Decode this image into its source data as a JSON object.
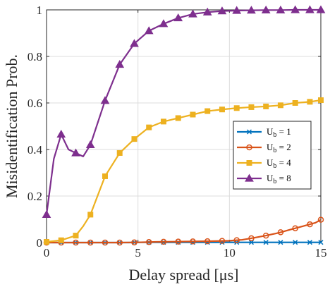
{
  "chart_data": {
    "type": "line",
    "xlabel": "Delay spread [μs]",
    "ylabel": "Misidentification Prob.",
    "xlim": [
      0,
      15
    ],
    "ylim": [
      0,
      1
    ],
    "xticks": [
      0,
      5,
      10,
      15
    ],
    "yticks": [
      0,
      0.2,
      0.4,
      0.6,
      0.8,
      1
    ],
    "xtick_labels": [
      "0",
      "5",
      "10",
      "15"
    ],
    "ytick_labels": [
      "0",
      "0.2",
      "0.4",
      "0.6",
      "0.8",
      "1"
    ],
    "grid": true,
    "legend_position": "center-right",
    "series": [
      {
        "name": "Ub = 1",
        "legend_main": "U",
        "legend_sub": "b",
        "legend_rest": " = 1",
        "color": "#0072BD",
        "marker": "x",
        "x": [
          0,
          0.5,
          1,
          1.5,
          2,
          2.5,
          3,
          3.5,
          4,
          4.5,
          5,
          5.5,
          6,
          6.5,
          7,
          7.5,
          8,
          8.5,
          9,
          9.5,
          10,
          10.5,
          11,
          11.5,
          12,
          12.5,
          13,
          13.5,
          14,
          14.5,
          15
        ],
        "y": [
          0,
          0,
          0,
          0,
          0,
          0,
          0,
          0,
          0,
          0,
          0.001,
          0.001,
          0.001,
          0.001,
          0.001,
          0.001,
          0.001,
          0.001,
          0.001,
          0.001,
          0.001,
          0.001,
          0.001,
          0.001,
          0.001,
          0.001,
          0.001,
          0.001,
          0.001,
          0.001,
          0.001
        ],
        "marker_x": [
          0,
          0.8,
          1.6,
          2.4,
          3.2,
          4,
          4.8,
          5.6,
          6.4,
          7.2,
          8,
          8.8,
          9.6,
          10.4,
          11.2,
          12,
          12.8,
          13.6,
          14.4,
          15
        ]
      },
      {
        "name": "Ub = 2",
        "legend_main": "U",
        "legend_sub": "b",
        "legend_rest": " = 2",
        "color": "#D95319",
        "marker": "circle",
        "x": [
          0,
          1,
          2,
          3,
          4,
          5,
          6,
          7,
          8,
          9,
          10,
          10.7,
          11.3,
          12,
          12.7,
          13.3,
          14,
          14.7,
          15
        ],
        "y": [
          0,
          0,
          0,
          0,
          0,
          0.001,
          0.003,
          0.004,
          0.005,
          0.006,
          0.008,
          0.012,
          0.02,
          0.03,
          0.042,
          0.055,
          0.07,
          0.085,
          0.098
        ],
        "marker_x": [
          0,
          0.8,
          1.6,
          2.4,
          3.2,
          4,
          4.8,
          5.6,
          6.4,
          7.2,
          8,
          8.8,
          9.6,
          10.4,
          11.2,
          12,
          12.8,
          13.6,
          14.4,
          15
        ]
      },
      {
        "name": "Ub = 4",
        "legend_main": "U",
        "legend_sub": "b",
        "legend_rest": " = 4",
        "color": "#EDB120",
        "marker": "square",
        "x": [
          0,
          0.8,
          1.6,
          2,
          2.4,
          3.2,
          4,
          4.8,
          5.6,
          6.4,
          7.2,
          8,
          8.8,
          9.6,
          10.4,
          11.2,
          12,
          12.8,
          13.6,
          14.4,
          15
        ],
        "y": [
          0.003,
          0.01,
          0.03,
          0.07,
          0.12,
          0.285,
          0.385,
          0.445,
          0.495,
          0.52,
          0.535,
          0.55,
          0.565,
          0.572,
          0.578,
          0.582,
          0.585,
          0.59,
          0.6,
          0.605,
          0.612
        ],
        "marker_x": [
          0,
          0.8,
          1.6,
          2.4,
          3.2,
          4,
          4.8,
          5.6,
          6.4,
          7.2,
          8,
          8.8,
          9.6,
          10.4,
          11.2,
          12,
          12.8,
          13.6,
          14.4,
          15
        ]
      },
      {
        "name": "Ub = 8",
        "legend_main": "U",
        "legend_sub": "b",
        "legend_rest": " = 8",
        "color": "#7E2F8E",
        "marker": "triangle",
        "x": [
          0,
          0.4,
          0.8,
          1.2,
          1.6,
          2,
          2.4,
          3.2,
          4,
          4.8,
          5.6,
          6.4,
          7.2,
          8,
          8.8,
          9.6,
          10.4,
          11.2,
          12,
          12.8,
          13.6,
          14.4,
          15
        ],
        "y": [
          0.12,
          0.36,
          0.465,
          0.4,
          0.385,
          0.37,
          0.42,
          0.61,
          0.765,
          0.855,
          0.91,
          0.94,
          0.965,
          0.982,
          0.99,
          0.995,
          0.997,
          0.998,
          0.999,
          0.999,
          1,
          1,
          1
        ],
        "marker_x": [
          0,
          0.8,
          1.6,
          2.4,
          3.2,
          4,
          4.8,
          5.6,
          6.4,
          7.2,
          8,
          8.8,
          9.6,
          10.4,
          11.2,
          12,
          12.8,
          13.6,
          14.4,
          15
        ]
      }
    ]
  }
}
